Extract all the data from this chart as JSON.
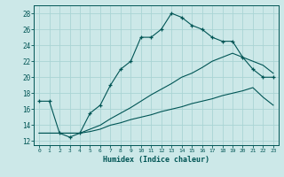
{
  "xlabel": "Humidex (Indice chaleur)",
  "bg_color": "#cce8e8",
  "grid_color": "#aad4d4",
  "line_color": "#005555",
  "xlim": [
    -0.5,
    23.5
  ],
  "ylim": [
    11.5,
    29.0
  ],
  "xticks": [
    0,
    1,
    2,
    3,
    4,
    5,
    6,
    7,
    8,
    9,
    10,
    11,
    12,
    13,
    14,
    15,
    16,
    17,
    18,
    19,
    20,
    21,
    22,
    23
  ],
  "yticks": [
    12,
    14,
    16,
    18,
    20,
    22,
    24,
    26,
    28
  ],
  "line_top": [
    17.0,
    17.0,
    13.0,
    12.5,
    13.0,
    15.5,
    16.5,
    19.0,
    21.0,
    22.0,
    25.0,
    25.0,
    26.0,
    28.0,
    27.5,
    26.5,
    26.0,
    25.0,
    24.5,
    24.5,
    22.5,
    21.0,
    20.0,
    20.0
  ],
  "line_mid": [
    13.0,
    13.0,
    13.0,
    13.0,
    13.0,
    13.5,
    14.0,
    14.8,
    15.5,
    16.2,
    17.0,
    17.8,
    18.5,
    19.2,
    20.0,
    20.5,
    21.2,
    22.0,
    22.5,
    23.0,
    22.5,
    22.0,
    21.5,
    20.5
  ],
  "line_bot": [
    13.0,
    13.0,
    13.0,
    13.0,
    13.0,
    13.2,
    13.5,
    14.0,
    14.3,
    14.7,
    15.0,
    15.3,
    15.7,
    16.0,
    16.3,
    16.7,
    17.0,
    17.3,
    17.7,
    18.0,
    18.3,
    18.7,
    17.5,
    16.5
  ]
}
